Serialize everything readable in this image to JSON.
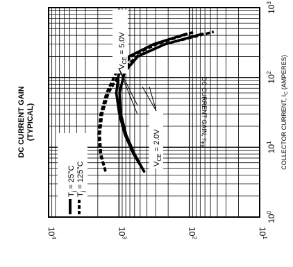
{
  "chart_data": {
    "type": "line",
    "title": "DC CURRENT GAIN",
    "subtitle": "(TYPICAL)",
    "xlabel": "COLLECTOR CURRENT, I_C (AMPERES)",
    "ylabel": "DC CURRENT GAIN, h_FE",
    "x_scale": "log",
    "y_scale": "log",
    "xlim": [
      1,
      1000
    ],
    "ylim": [
      10,
      10000
    ],
    "x_ticks": [
      {
        "value": 1,
        "label": "10^0"
      },
      {
        "value": 10,
        "label": "10^1"
      },
      {
        "value": 100,
        "label": "10^2"
      },
      {
        "value": 1000,
        "label": "10^3"
      }
    ],
    "y_ticks": [
      {
        "value": 10,
        "label": "10^1"
      },
      {
        "value": 100,
        "label": "10^2"
      },
      {
        "value": 1000,
        "label": "10^3"
      },
      {
        "value": 10000,
        "label": "10^4"
      }
    ],
    "grid": true,
    "legend_position": "bottom-left",
    "series": [
      {
        "name": "Tj = 25°C",
        "condition": "VCE = 5.0V",
        "style": "solid",
        "x": [
          4.5,
          8,
          15,
          30,
          60,
          120,
          200,
          300,
          420
        ],
        "y": [
          440,
          620,
          820,
          990,
          1090,
          1000,
          720,
          320,
          110
        ]
      },
      {
        "name": "Tj = 25°C",
        "condition": "VCE = 2.0V",
        "style": "solid",
        "x": [
          4.5,
          8,
          15,
          30,
          60,
          120,
          200,
          300,
          420
        ],
        "y": [
          440,
          600,
          790,
          940,
          980,
          830,
          540,
          220,
          65
        ]
      },
      {
        "name": "Tj = 125°C",
        "condition": "VCE = 5.0V",
        "style": "dashed",
        "x": [
          4.5,
          8,
          15,
          30,
          60,
          120,
          200,
          300,
          450
        ],
        "y": [
          1550,
          1850,
          1950,
          1820,
          1500,
          1080,
          670,
          290,
          85
        ]
      },
      {
        "name": "Tj = 125°C",
        "condition": "VCE = 2.0V",
        "style": "dashed",
        "x": [
          4.5,
          8,
          15,
          30,
          60,
          120,
          200,
          300,
          450
        ],
        "y": [
          1550,
          1800,
          1880,
          1740,
          1410,
          950,
          560,
          220,
          45
        ]
      }
    ],
    "annotations": [
      "VCE = 5.0V",
      "VCE = 2.0V"
    ]
  }
}
